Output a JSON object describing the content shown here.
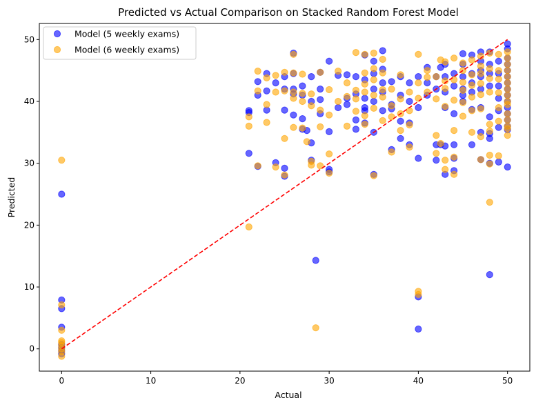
{
  "chart_data": {
    "type": "scatter",
    "title": "Predicted vs Actual Comparison on Stacked Random Forest Model",
    "xlabel": "Actual",
    "ylabel": "Predicted",
    "xlim": [
      -2.5,
      52.5
    ],
    "ylim": [
      -3.6,
      52.6
    ],
    "xticks": [
      0,
      10,
      20,
      30,
      40,
      50
    ],
    "yticks": [
      0,
      10,
      20,
      30,
      40,
      50
    ],
    "grid": false,
    "legend_position": "top-left",
    "reference_line": {
      "x": [
        0,
        50
      ],
      "y": [
        0,
        50
      ],
      "color": "#ff0000",
      "style": "dashed"
    },
    "series": [
      {
        "name": "Model (5 weekly exams)",
        "color": "#0000ff",
        "points": [
          [
            0,
            25.0
          ],
          [
            0,
            7.9
          ],
          [
            0,
            6.5
          ],
          [
            0,
            3.5
          ],
          [
            0,
            0.7
          ],
          [
            0,
            0.2
          ],
          [
            0,
            -0.3
          ],
          [
            0,
            -0.8
          ],
          [
            21,
            38.5
          ],
          [
            21,
            38.2
          ],
          [
            21,
            31.6
          ],
          [
            22,
            41.0
          ],
          [
            22,
            43.2
          ],
          [
            22,
            29.5
          ],
          [
            23,
            44.5
          ],
          [
            23,
            38.6
          ],
          [
            23,
            41.7
          ],
          [
            24,
            43.0
          ],
          [
            24,
            30.1
          ],
          [
            25,
            44.0
          ],
          [
            25,
            42.0
          ],
          [
            25,
            38.6
          ],
          [
            25,
            29.2
          ],
          [
            25,
            27.9
          ],
          [
            26,
            47.8
          ],
          [
            26,
            44.5
          ],
          [
            26,
            41.2
          ],
          [
            26,
            37.8
          ],
          [
            26,
            42.0
          ],
          [
            27,
            42.5
          ],
          [
            27,
            41.0
          ],
          [
            27,
            37.2
          ],
          [
            27,
            35.5
          ],
          [
            27.5,
            35.3
          ],
          [
            28,
            44.0
          ],
          [
            28,
            40.0
          ],
          [
            28,
            33.3
          ],
          [
            28,
            30.5
          ],
          [
            28.5,
            14.3
          ],
          [
            29,
            44.7
          ],
          [
            29,
            42.0
          ],
          [
            29,
            38.0
          ],
          [
            29,
            40.3
          ],
          [
            30,
            46.5
          ],
          [
            30,
            35.1
          ],
          [
            30,
            29.0
          ],
          [
            30,
            28.6
          ],
          [
            31,
            44.2
          ],
          [
            31,
            39.0
          ],
          [
            32,
            44.3
          ],
          [
            32,
            40.5
          ],
          [
            32,
            39.5
          ],
          [
            33,
            44.0
          ],
          [
            33,
            41.2
          ],
          [
            33,
            37.0
          ],
          [
            33,
            35.5
          ],
          [
            34,
            47.5
          ],
          [
            34,
            43.5
          ],
          [
            34,
            40.5
          ],
          [
            34,
            39.0
          ],
          [
            34,
            38.5
          ],
          [
            34,
            36.5
          ],
          [
            35,
            46.5
          ],
          [
            35,
            44.5
          ],
          [
            35,
            42.0
          ],
          [
            35,
            40.0
          ],
          [
            35,
            35.0
          ],
          [
            35,
            28.2
          ],
          [
            36,
            48.2
          ],
          [
            36,
            45.2
          ],
          [
            36,
            43.0
          ],
          [
            36,
            41.5
          ],
          [
            36,
            38.5
          ],
          [
            37,
            43.2
          ],
          [
            37,
            39.5
          ],
          [
            37,
            38.8
          ],
          [
            37,
            32.2
          ],
          [
            38,
            44.0
          ],
          [
            38,
            41.0
          ],
          [
            38,
            36.8
          ],
          [
            38,
            34.0
          ],
          [
            39,
            43.0
          ],
          [
            39,
            40.0
          ],
          [
            39,
            36.5
          ],
          [
            39,
            33.0
          ],
          [
            40,
            44.0
          ],
          [
            40,
            39.0
          ],
          [
            40,
            30.8
          ],
          [
            40,
            8.4
          ],
          [
            40,
            3.2
          ],
          [
            41,
            45.5
          ],
          [
            41,
            43.0
          ],
          [
            41,
            41.0
          ],
          [
            42,
            44.0
          ],
          [
            42,
            42.0
          ],
          [
            42,
            33.0
          ],
          [
            42,
            30.5
          ],
          [
            42.5,
            45.5
          ],
          [
            42.5,
            33.0
          ],
          [
            43,
            46.0
          ],
          [
            43,
            44.0
          ],
          [
            43,
            41.5
          ],
          [
            43,
            39.0
          ],
          [
            43,
            32.8
          ],
          [
            43,
            28.2
          ],
          [
            44,
            44.5
          ],
          [
            44,
            42.5
          ],
          [
            44,
            38.0
          ],
          [
            44,
            33.0
          ],
          [
            44,
            30.8
          ],
          [
            44,
            28.8
          ],
          [
            45,
            47.7
          ],
          [
            45,
            46.0
          ],
          [
            45,
            44.0
          ],
          [
            45,
            42.0
          ],
          [
            45,
            41.0
          ],
          [
            45,
            40.0
          ],
          [
            46,
            47.5
          ],
          [
            46,
            44.5
          ],
          [
            46,
            43.0
          ],
          [
            46,
            41.5
          ],
          [
            46,
            38.7
          ],
          [
            46,
            33.0
          ],
          [
            47,
            48.0
          ],
          [
            47,
            46.5
          ],
          [
            47,
            45.0
          ],
          [
            47,
            44.0
          ],
          [
            47,
            42.0
          ],
          [
            47,
            39.0
          ],
          [
            47,
            35.0
          ],
          [
            47,
            30.6
          ],
          [
            48,
            48.0
          ],
          [
            48,
            46.0
          ],
          [
            48,
            44.5
          ],
          [
            48,
            42.5
          ],
          [
            48,
            37.5
          ],
          [
            48,
            34.8
          ],
          [
            48,
            34.0
          ],
          [
            48,
            30.0
          ],
          [
            48,
            12.0
          ],
          [
            49,
            46.5
          ],
          [
            49,
            44.5
          ],
          [
            49,
            42.5
          ],
          [
            49,
            40.5
          ],
          [
            49,
            38.5
          ],
          [
            49,
            35.8
          ],
          [
            49,
            30.2
          ],
          [
            50,
            49.3
          ],
          [
            50,
            48.5
          ],
          [
            50,
            47.0
          ],
          [
            50,
            46.0
          ],
          [
            50,
            45.0
          ],
          [
            50,
            44.0
          ],
          [
            50,
            43.0
          ],
          [
            50,
            42.0
          ],
          [
            50,
            41.0
          ],
          [
            50,
            40.0
          ],
          [
            50,
            39.0
          ],
          [
            50,
            38.0
          ],
          [
            50,
            37.0
          ],
          [
            50,
            36.0
          ],
          [
            50,
            35.4
          ],
          [
            50,
            29.4
          ]
        ]
      },
      {
        "name": "Model (6 weekly exams)",
        "color": "#ffa500",
        "points": [
          [
            0,
            30.5
          ],
          [
            0,
            7.1
          ],
          [
            0,
            3.0
          ],
          [
            0,
            1.3
          ],
          [
            0,
            1.0
          ],
          [
            0,
            0.5
          ],
          [
            0,
            0.0
          ],
          [
            0,
            -0.5
          ],
          [
            0,
            -1.2
          ],
          [
            21,
            37.5
          ],
          [
            21,
            36.0
          ],
          [
            21,
            19.7
          ],
          [
            22,
            44.9
          ],
          [
            22,
            41.7
          ],
          [
            22,
            29.6
          ],
          [
            23,
            43.8
          ],
          [
            23,
            39.5
          ],
          [
            23,
            36.6
          ],
          [
            24,
            44.2
          ],
          [
            24,
            41.5
          ],
          [
            24,
            29.4
          ],
          [
            25,
            44.7
          ],
          [
            25,
            41.7
          ],
          [
            25,
            34.0
          ],
          [
            25,
            28.1
          ],
          [
            26,
            47.6
          ],
          [
            26,
            44.6
          ],
          [
            26,
            40.5
          ],
          [
            26,
            35.8
          ],
          [
            26,
            41.5
          ],
          [
            27,
            44.4
          ],
          [
            27,
            40.0
          ],
          [
            27,
            35.7
          ],
          [
            27,
            41.3
          ],
          [
            27.5,
            33.5
          ],
          [
            28,
            41.2
          ],
          [
            28,
            39.3
          ],
          [
            28,
            30.3
          ],
          [
            28,
            29.7
          ],
          [
            28.5,
            3.4
          ],
          [
            29,
            44.7
          ],
          [
            29,
            38.6
          ],
          [
            29,
            35.9
          ],
          [
            29,
            29.6
          ],
          [
            30,
            41.9
          ],
          [
            30,
            37.8
          ],
          [
            30,
            31.5
          ],
          [
            30,
            28.4
          ],
          [
            31,
            44.9
          ],
          [
            31,
            40.0
          ],
          [
            32,
            43.0
          ],
          [
            32,
            40.8
          ],
          [
            32,
            36.0
          ],
          [
            33,
            47.9
          ],
          [
            33,
            41.8
          ],
          [
            33,
            40.4
          ],
          [
            33,
            38.4
          ],
          [
            34,
            47.6
          ],
          [
            34,
            44.6
          ],
          [
            34,
            42.8
          ],
          [
            34,
            41.5
          ],
          [
            34,
            37.7
          ],
          [
            34,
            36.3
          ],
          [
            35,
            47.8
          ],
          [
            35,
            45.3
          ],
          [
            35,
            43.5
          ],
          [
            35,
            41.0
          ],
          [
            35,
            38.9
          ],
          [
            35,
            28.0
          ],
          [
            36,
            46.8
          ],
          [
            36,
            44.6
          ],
          [
            36,
            41.9
          ],
          [
            36,
            40.7
          ],
          [
            36,
            36.9
          ],
          [
            37,
            42.0
          ],
          [
            37,
            39.3
          ],
          [
            37,
            37.5
          ],
          [
            37,
            31.8
          ],
          [
            38,
            44.3
          ],
          [
            38,
            40.4
          ],
          [
            38,
            38.0
          ],
          [
            38,
            35.3
          ],
          [
            39,
            41.5
          ],
          [
            39,
            38.5
          ],
          [
            39,
            36.2
          ],
          [
            39,
            32.6
          ],
          [
            40,
            47.6
          ],
          [
            40,
            43.0
          ],
          [
            40,
            40.5
          ],
          [
            40,
            9.3
          ],
          [
            40,
            8.8
          ],
          [
            41,
            45.0
          ],
          [
            41,
            43.9
          ],
          [
            41,
            41.5
          ],
          [
            42,
            44.0
          ],
          [
            42,
            40.4
          ],
          [
            42,
            34.5
          ],
          [
            42,
            31.6
          ],
          [
            42.5,
            46.7
          ],
          [
            42.5,
            33.2
          ],
          [
            43,
            46.4
          ],
          [
            43,
            43.3
          ],
          [
            43,
            42.1
          ],
          [
            43,
            39.2
          ],
          [
            43,
            30.5
          ],
          [
            43,
            29.0
          ],
          [
            44,
            47.0
          ],
          [
            44,
            43.5
          ],
          [
            44,
            40.2
          ],
          [
            44,
            35.3
          ],
          [
            44,
            31.0
          ],
          [
            44,
            28.2
          ],
          [
            45,
            46.2
          ],
          [
            45,
            45.0
          ],
          [
            45,
            43.1
          ],
          [
            45,
            41.8
          ],
          [
            45,
            39.8
          ],
          [
            45,
            37.6
          ],
          [
            46,
            46.7
          ],
          [
            46,
            44.3
          ],
          [
            46,
            42.6
          ],
          [
            46,
            40.7
          ],
          [
            46,
            38.5
          ],
          [
            46,
            35.0
          ],
          [
            47,
            47.3
          ],
          [
            47,
            45.7
          ],
          [
            47,
            44.5
          ],
          [
            47,
            42.9
          ],
          [
            47,
            41.1
          ],
          [
            47,
            38.8
          ],
          [
            47,
            34.3
          ],
          [
            47,
            30.6
          ],
          [
            48,
            47.8
          ],
          [
            48,
            45.3
          ],
          [
            48,
            43.7
          ],
          [
            48,
            41.5
          ],
          [
            48,
            36.3
          ],
          [
            48,
            35.2
          ],
          [
            48,
            31.3
          ],
          [
            48,
            29.9
          ],
          [
            48,
            23.7
          ],
          [
            49,
            47.6
          ],
          [
            49,
            45.0
          ],
          [
            49,
            43.6
          ],
          [
            49,
            41.4
          ],
          [
            49,
            39.0
          ],
          [
            49,
            36.8
          ],
          [
            49,
            31.2
          ],
          [
            50,
            48.0
          ],
          [
            50,
            47.0
          ],
          [
            50,
            46.0
          ],
          [
            50,
            45.0
          ],
          [
            50,
            44.0
          ],
          [
            50,
            43.0
          ],
          [
            50,
            42.0
          ],
          [
            50,
            41.0
          ],
          [
            50,
            40.0
          ],
          [
            50,
            39.5
          ],
          [
            50,
            38.0
          ],
          [
            50,
            37.0
          ],
          [
            50,
            36.0
          ],
          [
            50,
            35.6
          ],
          [
            50,
            34.5
          ]
        ]
      }
    ]
  }
}
